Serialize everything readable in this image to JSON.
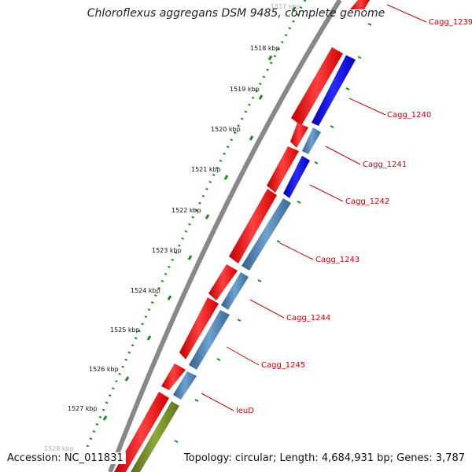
{
  "title": "Chloroflexus aggregans DSM 9485, complete genome",
  "accession": "Accession: NC_011831",
  "summary": "Topology: circular; Length: 4,684,931 bp; Genes: 3,787",
  "scale_labels": [
    {
      "text": "1517 kbp"
    },
    {
      "text": "1518 kbp"
    },
    {
      "text": "1519 kbp"
    },
    {
      "text": "1520 kbp"
    },
    {
      "text": "1521 kbp"
    },
    {
      "text": "1522 kbp"
    },
    {
      "text": "1523 kbp"
    },
    {
      "text": "1524 kbp"
    },
    {
      "text": "1525 kbp"
    },
    {
      "text": "1526 kbp"
    },
    {
      "text": "1527 kbp"
    },
    {
      "text": "1528 kbp"
    }
  ],
  "gene_labels": [
    {
      "text": "Cagg_1239"
    },
    {
      "text": "Cagg_1240"
    },
    {
      "text": "Cagg_1241"
    },
    {
      "text": "Cagg_1242"
    },
    {
      "text": "Cagg_1243"
    },
    {
      "text": "Cagg_1244"
    },
    {
      "text": "Cagg_1245"
    },
    {
      "text": "leuD"
    }
  ],
  "colors": {
    "forward_cds": "#ff0000",
    "reverse_cds_light": "#4682b4",
    "reverse_cds_dark": "#0000ff",
    "olive_feature": "#6b8e23",
    "backbone": "#8a8a8a",
    "scale_ticks": "#1a8c1a",
    "label_text": "#cc0000"
  }
}
